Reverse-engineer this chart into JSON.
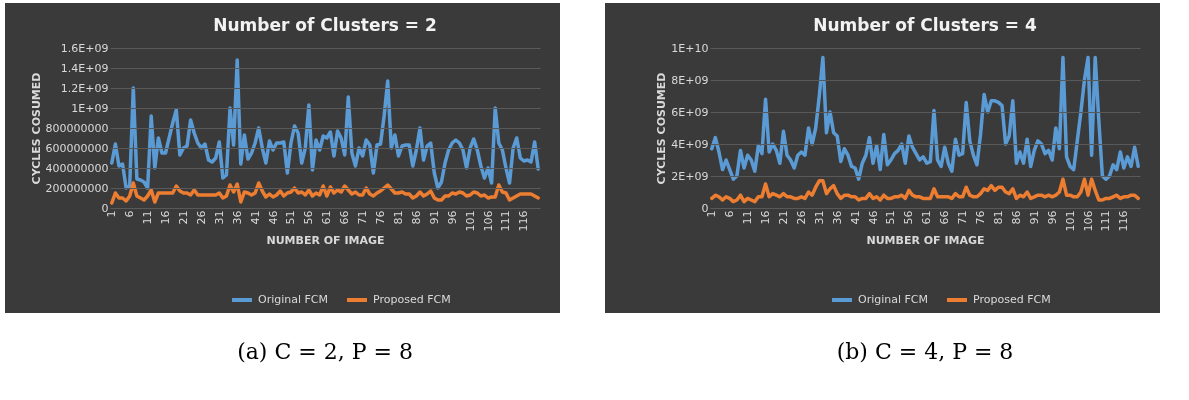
{
  "chart_data": [
    {
      "type": "line",
      "title": "Number of Clusters = 2",
      "xlabel": "NUMBER OF IMAGE",
      "ylabel": "CYCLES COSUMED",
      "x": [
        1,
        2,
        3,
        4,
        5,
        6,
        7,
        8,
        9,
        10,
        11,
        12,
        13,
        14,
        15,
        16,
        17,
        18,
        19,
        20,
        21,
        22,
        23,
        24,
        25,
        26,
        27,
        28,
        29,
        30,
        31,
        32,
        33,
        34,
        35,
        36,
        37,
        38,
        39,
        40,
        41,
        42,
        43,
        44,
        45,
        46,
        47,
        48,
        49,
        50,
        51,
        52,
        53,
        54,
        55,
        56,
        57,
        58,
        59,
        60,
        61,
        62,
        63,
        64,
        65,
        66,
        67,
        68,
        69,
        70,
        71,
        72,
        73,
        74,
        75,
        76,
        77,
        78,
        79,
        80,
        81,
        82,
        83,
        84,
        85,
        86,
        87,
        88,
        89,
        90,
        91,
        92,
        93,
        94,
        95,
        96,
        97,
        98,
        99,
        100,
        101,
        102,
        103,
        104,
        105,
        106,
        107,
        108,
        109,
        110,
        111,
        112,
        113,
        114,
        115,
        116,
        117,
        118,
        119,
        120
      ],
      "xlim": [
        0.5,
        120.5
      ],
      "xticks": [
        1,
        6,
        11,
        16,
        21,
        26,
        31,
        36,
        41,
        46,
        51,
        56,
        61,
        66,
        71,
        76,
        81,
        86,
        91,
        96,
        101,
        106,
        111,
        116
      ],
      "ylim": [
        0,
        1600000000
      ],
      "yticks": [
        0,
        200000000,
        400000000,
        600000000,
        800000000,
        {
          "value": 1000000000,
          "label": "1E+09"
        },
        {
          "value": 1200000000,
          "label": "1.2E+09"
        },
        {
          "value": 1400000000,
          "label": "1.4E+09"
        },
        {
          "value": 1600000000,
          "label": "1.6E+09"
        }
      ],
      "grid": "y",
      "legend": "bottom",
      "series": [
        {
          "name": "Original FCM",
          "color": "#5b9bd5",
          "values": [
            450000000.0,
            640000000.0,
            420000000.0,
            440000000.0,
            200000000.0,
            220000000.0,
            1200000000.0,
            290000000.0,
            280000000.0,
            260000000.0,
            200000000.0,
            920000000.0,
            400000000.0,
            700000000.0,
            550000000.0,
            550000000.0,
            700000000.0,
            850000000.0,
            980000000.0,
            530000000.0,
            600000000.0,
            620000000.0,
            880000000.0,
            750000000.0,
            650000000.0,
            600000000.0,
            640000000.0,
            480000000.0,
            460000000.0,
            500000000.0,
            660000000.0,
            300000000.0,
            330000000.0,
            1000000000.0,
            630000000.0,
            1480000000.0,
            440000000.0,
            730000000.0,
            490000000.0,
            550000000.0,
            650000000.0,
            800000000.0,
            600000000.0,
            450000000.0,
            670000000.0,
            580000000.0,
            650000000.0,
            650000000.0,
            660000000.0,
            350000000.0,
            650000000.0,
            820000000.0,
            750000000.0,
            450000000.0,
            600000000.0,
            1030000000.0,
            380000000.0,
            680000000.0,
            580000000.0,
            720000000.0,
            700000000.0,
            760000000.0,
            520000000.0,
            770000000.0,
            700000000.0,
            530000000.0,
            1110000000.0,
            550000000.0,
            420000000.0,
            600000000.0,
            520000000.0,
            680000000.0,
            630000000.0,
            350000000.0,
            630000000.0,
            640000000.0,
            920000000.0,
            1270000000.0,
            600000000.0,
            730000000.0,
            520000000.0,
            620000000.0,
            630000000.0,
            630000000.0,
            420000000.0,
            580000000.0,
            800000000.0,
            480000000.0,
            620000000.0,
            650000000.0,
            350000000.0,
            200000000.0,
            260000000.0,
            450000000.0,
            580000000.0,
            650000000.0,
            680000000.0,
            650000000.0,
            580000000.0,
            400000000.0,
            600000000.0,
            690000000.0,
            580000000.0,
            420000000.0,
            300000000.0,
            400000000.0,
            250000000.0,
            1000000000.0,
            650000000.0,
            580000000.0,
            400000000.0,
            250000000.0,
            600000000.0,
            700000000.0,
            500000000.0,
            470000000.0,
            480000000.0,
            460000000.0,
            660000000.0,
            390000000.0
          ]
        },
        {
          "name": "Proposed FCM",
          "color": "#ed7d31",
          "values": [
            50000000.0,
            150000000.0,
            100000000.0,
            100000000.0,
            70000000.0,
            120000000.0,
            250000000.0,
            120000000.0,
            100000000.0,
            80000000.0,
            120000000.0,
            180000000.0,
            60000000.0,
            150000000.0,
            150000000.0,
            150000000.0,
            150000000.0,
            150000000.0,
            220000000.0,
            170000000.0,
            150000000.0,
            150000000.0,
            130000000.0,
            180000000.0,
            130000000.0,
            130000000.0,
            130000000.0,
            130000000.0,
            130000000.0,
            130000000.0,
            150000000.0,
            100000000.0,
            120000000.0,
            230000000.0,
            160000000.0,
            240000000.0,
            60000000.0,
            160000000.0,
            150000000.0,
            130000000.0,
            150000000.0,
            250000000.0,
            170000000.0,
            110000000.0,
            140000000.0,
            110000000.0,
            130000000.0,
            170000000.0,
            120000000.0,
            150000000.0,
            160000000.0,
            200000000.0,
            150000000.0,
            160000000.0,
            130000000.0,
            180000000.0,
            120000000.0,
            150000000.0,
            130000000.0,
            220000000.0,
            120000000.0,
            210000000.0,
            150000000.0,
            180000000.0,
            160000000.0,
            220000000.0,
            180000000.0,
            140000000.0,
            160000000.0,
            130000000.0,
            130000000.0,
            200000000.0,
            140000000.0,
            120000000.0,
            150000000.0,
            170000000.0,
            200000000.0,
            230000000.0,
            190000000.0,
            150000000.0,
            150000000.0,
            160000000.0,
            140000000.0,
            140000000.0,
            100000000.0,
            120000000.0,
            160000000.0,
            120000000.0,
            140000000.0,
            170000000.0,
            100000000.0,
            80000000.0,
            80000000.0,
            120000000.0,
            120000000.0,
            150000000.0,
            140000000.0,
            160000000.0,
            150000000.0,
            120000000.0,
            130000000.0,
            160000000.0,
            150000000.0,
            120000000.0,
            130000000.0,
            100000000.0,
            110000000.0,
            110000000.0,
            230000000.0,
            160000000.0,
            150000000.0,
            80000000.0,
            100000000.0,
            120000000.0,
            140000000.0,
            140000000.0,
            140000000.0,
            140000000.0,
            120000000.0,
            100000000.0
          ]
        }
      ],
      "annotations": [
        "(a) C = 2, P = 8"
      ]
    },
    {
      "type": "line",
      "title": "Number of Clusters = 4",
      "xlabel": "NUMBER OF IMAGE",
      "ylabel": "CYCLES COSUMED",
      "x": [
        1,
        2,
        3,
        4,
        5,
        6,
        7,
        8,
        9,
        10,
        11,
        12,
        13,
        14,
        15,
        16,
        17,
        18,
        19,
        20,
        21,
        22,
        23,
        24,
        25,
        26,
        27,
        28,
        29,
        30,
        31,
        32,
        33,
        34,
        35,
        36,
        37,
        38,
        39,
        40,
        41,
        42,
        43,
        44,
        45,
        46,
        47,
        48,
        49,
        50,
        51,
        52,
        53,
        54,
        55,
        56,
        57,
        58,
        59,
        60,
        61,
        62,
        63,
        64,
        65,
        66,
        67,
        68,
        69,
        70,
        71,
        72,
        73,
        74,
        75,
        76,
        77,
        78,
        79,
        80,
        81,
        82,
        83,
        84,
        85,
        86,
        87,
        88,
        89,
        90,
        91,
        92,
        93,
        94,
        95,
        96,
        97,
        98,
        99,
        100,
        101,
        102,
        103,
        104,
        105,
        106,
        107,
        108,
        109,
        110,
        111,
        112,
        113,
        114,
        115,
        116,
        117,
        118,
        119,
        120
      ],
      "xlim": [
        0.5,
        120.5
      ],
      "xticks": [
        1,
        6,
        11,
        16,
        21,
        26,
        31,
        36,
        41,
        46,
        51,
        56,
        61,
        66,
        71,
        76,
        81,
        86,
        91,
        96,
        101,
        106,
        111,
        116
      ],
      "ylim": [
        0,
        10000000000
      ],
      "yticks": [
        0,
        {
          "value": 2000000000,
          "label": "2E+09"
        },
        {
          "value": 4000000000,
          "label": "4E+09"
        },
        {
          "value": 6000000000,
          "label": "6E+09"
        },
        {
          "value": 8000000000,
          "label": "8E+09"
        },
        {
          "value": 10000000000,
          "label": "1E+10"
        }
      ],
      "grid": "y",
      "legend": "bottom",
      "series": [
        {
          "name": "Original FCM",
          "color": "#5b9bd5",
          "values": [
            3700000000.0,
            4400000000.0,
            3500000000.0,
            2400000000.0,
            3000000000.0,
            2400000000.0,
            1800000000.0,
            2000000000.0,
            3600000000.0,
            2500000000.0,
            3300000000.0,
            3000000000.0,
            2300000000.0,
            3900000000.0,
            3400000000.0,
            6800000000.0,
            3500000000.0,
            4000000000.0,
            3600000000.0,
            2800000000.0,
            4800000000.0,
            3300000000.0,
            3000000000.0,
            2500000000.0,
            3300000000.0,
            3500000000.0,
            3300000000.0,
            5000000000.0,
            4000000000.0,
            5000000000.0,
            7000000000.0,
            9400000000.0,
            4700000000.0,
            6000000000.0,
            4700000000.0,
            4500000000.0,
            2900000000.0,
            3700000000.0,
            3300000000.0,
            2600000000.0,
            2500000000.0,
            1800000000.0,
            2800000000.0,
            3300000000.0,
            4400000000.0,
            2800000000.0,
            3900000000.0,
            2400000000.0,
            4600000000.0,
            2700000000.0,
            3000000000.0,
            3400000000.0,
            3600000000.0,
            4000000000.0,
            2800000000.0,
            4500000000.0,
            3800000000.0,
            3400000000.0,
            3000000000.0,
            3200000000.0,
            2800000000.0,
            2900000000.0,
            6100000000.0,
            3000000000.0,
            2600000000.0,
            3800000000.0,
            2800000000.0,
            2300000000.0,
            4300000000.0,
            3300000000.0,
            3400000000.0,
            6600000000.0,
            4200000000.0,
            3300000000.0,
            2700000000.0,
            4600000000.0,
            7100000000.0,
            6000000000.0,
            6700000000.0,
            6700000000.0,
            6600000000.0,
            6400000000.0,
            4000000000.0,
            4500000000.0,
            6700000000.0,
            2800000000.0,
            3500000000.0,
            2800000000.0,
            4300000000.0,
            2600000000.0,
            3600000000.0,
            4200000000.0,
            4000000000.0,
            3400000000.0,
            3600000000.0,
            3000000000.0,
            5000000000.0,
            3700000000.0,
            9400000000.0,
            3200000000.0,
            2600000000.0,
            2400000000.0,
            4200000000.0,
            6000000000.0,
            8000000000.0,
            9400000000.0,
            3300000000.0,
            9400000000.0,
            5500000000.0,
            2000000000.0,
            1800000000.0,
            2000000000.0,
            2700000000.0,
            2400000000.0,
            3500000000.0,
            2500000000.0,
            3200000000.0,
            2600000000.0,
            3800000000.0,
            2600000000.0
          ]
        },
        {
          "name": "Proposed FCM",
          "color": "#ed7d31",
          "values": [
            600000000.0,
            800000000.0,
            700000000.0,
            500000000.0,
            700000000.0,
            600000000.0,
            400000000.0,
            500000000.0,
            800000000.0,
            400000000.0,
            600000000.0,
            500000000.0,
            400000000.0,
            700000000.0,
            700000000.0,
            1500000000.0,
            700000000.0,
            900000000.0,
            800000000.0,
            700000000.0,
            900000000.0,
            700000000.0,
            700000000.0,
            600000000.0,
            600000000.0,
            700000000.0,
            600000000.0,
            1000000000.0,
            800000000.0,
            1300000000.0,
            1700000000.0,
            1700000000.0,
            900000000.0,
            1200000000.0,
            1400000000.0,
            900000000.0,
            600000000.0,
            800000000.0,
            800000000.0,
            700000000.0,
            700000000.0,
            500000000.0,
            600000000.0,
            600000000.0,
            900000000.0,
            600000000.0,
            700000000.0,
            500000000.0,
            800000000.0,
            600000000.0,
            600000000.0,
            700000000.0,
            700000000.0,
            800000000.0,
            600000000.0,
            1100000000.0,
            800000000.0,
            700000000.0,
            700000000.0,
            600000000.0,
            600000000.0,
            600000000.0,
            1200000000.0,
            700000000.0,
            700000000.0,
            700000000.0,
            700000000.0,
            600000000.0,
            900000000.0,
            700000000.0,
            700000000.0,
            1300000000.0,
            800000000.0,
            700000000.0,
            700000000.0,
            900000000.0,
            1200000000.0,
            1100000000.0,
            1400000000.0,
            1100000000.0,
            1300000000.0,
            1300000000.0,
            1000000000.0,
            900000000.0,
            1200000000.0,
            600000000.0,
            800000000.0,
            700000000.0,
            1000000000.0,
            600000000.0,
            700000000.0,
            800000000.0,
            800000000.0,
            700000000.0,
            800000000.0,
            700000000.0,
            800000000.0,
            1000000000.0,
            1800000000.0,
            800000000.0,
            800000000.0,
            700000000.0,
            700000000.0,
            1000000000.0,
            1800000000.0,
            800000000.0,
            1800000000.0,
            1100000000.0,
            500000000.0,
            500000000.0,
            600000000.0,
            600000000.0,
            700000000.0,
            800000000.0,
            600000000.0,
            700000000.0,
            700000000.0,
            800000000.0,
            800000000.0,
            600000000.0
          ]
        }
      ],
      "annotations": [
        "(b) C = 4, P = 8"
      ]
    }
  ]
}
